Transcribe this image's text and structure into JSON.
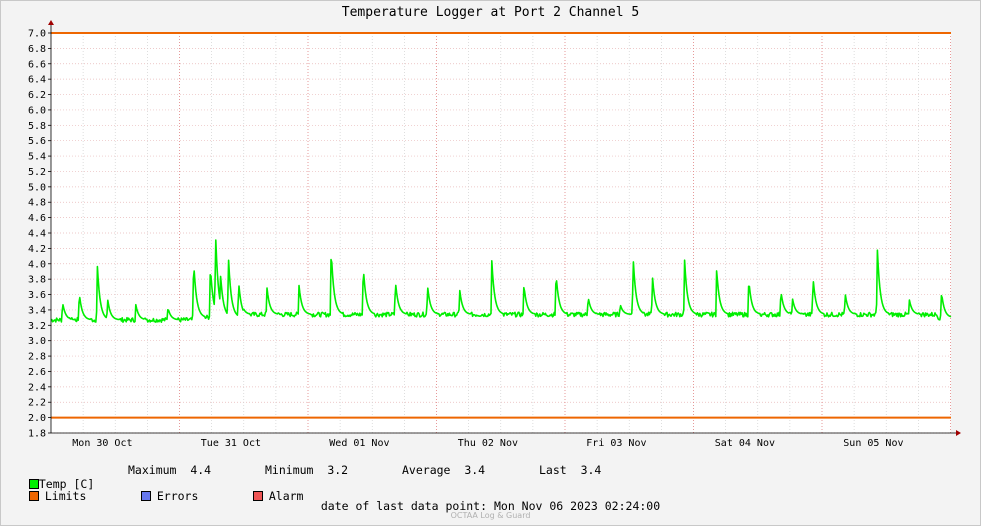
{
  "chart_data": {
    "type": "line",
    "title": "Temperature Logger at Port 2 Channel 5",
    "ylim": [
      1.8,
      7.0
    ],
    "y_ticks": [
      "7.0",
      "6.8",
      "6.6",
      "6.4",
      "6.2",
      "6.0",
      "5.8",
      "5.6",
      "5.4",
      "5.2",
      "5.0",
      "4.8",
      "4.6",
      "4.4",
      "4.2",
      "4.0",
      "3.8",
      "3.6",
      "3.4",
      "3.2",
      "3.0",
      "2.8",
      "2.6",
      "2.4",
      "2.2",
      "2.0",
      "1.8"
    ],
    "x_ticks": [
      "Mon 30 Oct",
      "Tue 31 Oct",
      "Wed 01 Nov",
      "Thu 02 Nov",
      "Fri 03 Nov",
      "Sat 04 Nov",
      "Sun 05 Nov"
    ],
    "grid": true,
    "limits": {
      "upper": 7.0,
      "lower": 2.0
    },
    "series": [
      {
        "name": "Temp [C]",
        "baseline": 3.3,
        "peaks": [
          {
            "day": 0.09,
            "v": 3.5
          },
          {
            "day": 0.22,
            "v": 3.62
          },
          {
            "day": 0.36,
            "v": 4.0
          },
          {
            "day": 0.44,
            "v": 3.55
          },
          {
            "day": 0.66,
            "v": 3.47
          },
          {
            "day": 0.91,
            "v": 3.43
          },
          {
            "day": 1.11,
            "v": 4.04
          },
          {
            "day": 1.24,
            "v": 3.98
          },
          {
            "day": 1.28,
            "v": 4.43
          },
          {
            "day": 1.32,
            "v": 3.85
          },
          {
            "day": 1.38,
            "v": 4.12
          },
          {
            "day": 1.46,
            "v": 3.77
          },
          {
            "day": 1.68,
            "v": 3.7
          },
          {
            "day": 1.93,
            "v": 3.72
          },
          {
            "day": 2.18,
            "v": 4.2
          },
          {
            "day": 2.43,
            "v": 3.97
          },
          {
            "day": 2.68,
            "v": 3.78
          },
          {
            "day": 2.93,
            "v": 3.72
          },
          {
            "day": 3.18,
            "v": 3.67
          },
          {
            "day": 3.43,
            "v": 4.05
          },
          {
            "day": 3.68,
            "v": 3.73
          },
          {
            "day": 3.93,
            "v": 3.88
          },
          {
            "day": 4.18,
            "v": 3.57
          },
          {
            "day": 4.43,
            "v": 3.47
          },
          {
            "day": 4.53,
            "v": 4.1
          },
          {
            "day": 4.68,
            "v": 3.85
          },
          {
            "day": 4.93,
            "v": 4.07
          },
          {
            "day": 5.18,
            "v": 3.93
          },
          {
            "day": 5.43,
            "v": 3.8
          },
          {
            "day": 5.68,
            "v": 3.65
          },
          {
            "day": 5.77,
            "v": 3.55
          },
          {
            "day": 5.93,
            "v": 3.83
          },
          {
            "day": 6.18,
            "v": 3.62
          },
          {
            "day": 6.43,
            "v": 4.22
          },
          {
            "day": 6.68,
            "v": 3.53
          },
          {
            "day": 6.93,
            "v": 3.63
          }
        ]
      }
    ]
  },
  "legend": {
    "temp_label": "Temp [C]",
    "maximum_label": "Maximum",
    "maximum_value": "4.4",
    "minimum_label": "Minimum",
    "minimum_value": "3.2",
    "average_label": "Average",
    "average_value": "3.4",
    "last_label": "Last",
    "last_value": "3.4",
    "limits_label": "Limits",
    "errors_label": "Errors",
    "alarm_label": "Alarm"
  },
  "colors": {
    "temp": "#00ee00",
    "limits": "#ee6600",
    "errors": "#6677ee",
    "alarm": "#ee5555"
  },
  "footer": {
    "last_point_label": "date of last data point:",
    "last_point_value": "Mon Nov 06 2023 02:24:00"
  },
  "brand": "OCTAA Log & Guard"
}
